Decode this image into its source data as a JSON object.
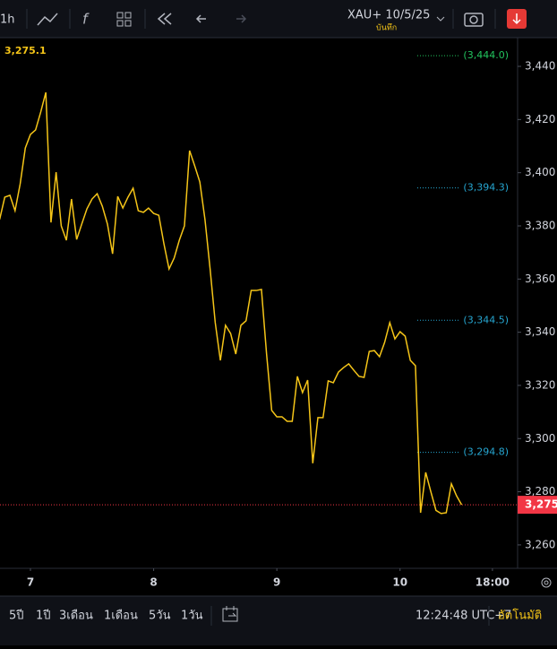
{
  "toolbar": {
    "interval": "1h",
    "symbol": "XAU+ 10/5/25",
    "save": "บันทึก"
  },
  "chart_data": {
    "type": "line",
    "last_price": {
      "value": 3275.1,
      "label": "3,275.1"
    },
    "price_tag": {
      "value": 3275.1,
      "label": "3,275"
    },
    "levels": [
      {
        "value": 3444.0,
        "label": "(3,444.0)",
        "color": "#22c55e"
      },
      {
        "value": 3394.3,
        "label": "(3,394.3)",
        "color": "#26a6d1"
      },
      {
        "value": 3344.5,
        "label": "(3,344.5)",
        "color": "#26a6d1"
      },
      {
        "value": 3294.8,
        "label": "(3,294.8)",
        "color": "#26a6d1"
      }
    ],
    "x": [
      -6,
      -5,
      -4,
      -3,
      -2,
      -1,
      0,
      1,
      2,
      3,
      4,
      5,
      6,
      7,
      8,
      9,
      10,
      11,
      12,
      13,
      14,
      15,
      16,
      17,
      18,
      19,
      20,
      21,
      22,
      23,
      24,
      25,
      26,
      27,
      28,
      29,
      30,
      31,
      32,
      33,
      34,
      35,
      36,
      37,
      38,
      39,
      40,
      41,
      42,
      43,
      44,
      45,
      46,
      47,
      48,
      49,
      50,
      51,
      52,
      53,
      54,
      55,
      56,
      57,
      58,
      59,
      60,
      61,
      62,
      63,
      64,
      65,
      66,
      67,
      68,
      69,
      70,
      71,
      72,
      73,
      74,
      75,
      76,
      77,
      78,
      79,
      80,
      81,
      82,
      83,
      84
    ],
    "series": [
      {
        "name": "XAU+",
        "color": "#f5c518",
        "values": [
          3382.4,
          3390.8,
          3391.5,
          3385.7,
          3395.8,
          3409.3,
          3414.4,
          3416.1,
          3422.8,
          3430.2,
          3381.3,
          3400.2,
          3380.0,
          3374.6,
          3390.1,
          3374.9,
          3380.7,
          3386.4,
          3390.1,
          3392.1,
          3387.4,
          3380.7,
          3369.5,
          3391.1,
          3386.7,
          3390.8,
          3394.2,
          3385.7,
          3385.1,
          3386.7,
          3384.7,
          3384.0,
          3373.3,
          3363.8,
          3367.9,
          3374.6,
          3380.0,
          3408.3,
          3402.6,
          3396.5,
          3382.4,
          3363.8,
          3343.6,
          3329.4,
          3342.6,
          3339.5,
          3331.8,
          3342.6,
          3344.3,
          3355.7,
          3355.7,
          3356.1,
          3331.8,
          3310.6,
          3308.2,
          3308.2,
          3306.5,
          3306.5,
          3323.4,
          3317.3,
          3322.0,
          3290.7,
          3307.9,
          3307.9,
          3321.7,
          3321.0,
          3325.0,
          3326.7,
          3328.1,
          3325.7,
          3323.4,
          3323.0,
          3332.8,
          3333.1,
          3330.8,
          3336.2,
          3343.6,
          3337.5,
          3340.2,
          3338.5,
          3329.4,
          3327.4,
          3272.1,
          3287.3,
          3280.0,
          3273.0,
          3271.8,
          3272.1,
          3283.0,
          3278.5,
          3275.1
        ]
      }
    ],
    "xlim": [
      -5.93,
      94.9
    ],
    "xticks": [
      {
        "value": 0,
        "label": "7"
      },
      {
        "value": 24,
        "label": "8"
      },
      {
        "value": 48,
        "label": "9"
      },
      {
        "value": 72,
        "label": "10"
      },
      {
        "value": 90,
        "label": "18:00"
      }
    ],
    "ylim": [
      3251.2,
      3450.8
    ],
    "yticks": [
      {
        "value": 3260,
        "label": "3,260"
      },
      {
        "value": 3280,
        "label": "3,280"
      },
      {
        "value": 3300,
        "label": "3,300"
      },
      {
        "value": 3320,
        "label": "3,320"
      },
      {
        "value": 3340,
        "label": "3,340"
      },
      {
        "value": 3360,
        "label": "3,360"
      },
      {
        "value": 3380,
        "label": "3,380"
      },
      {
        "value": 3400,
        "label": "3,400"
      },
      {
        "value": 3420,
        "label": "3,420"
      },
      {
        "value": 3440,
        "label": "3,440"
      }
    ],
    "grid": false
  },
  "footer": {
    "ranges": [
      "5ปี",
      "1ปี",
      "3เดือน",
      "1เดือน",
      "5วัน",
      "1วัน"
    ],
    "time": "12:24:48 UTC+7",
    "auto": "อัตโนมัติ"
  }
}
